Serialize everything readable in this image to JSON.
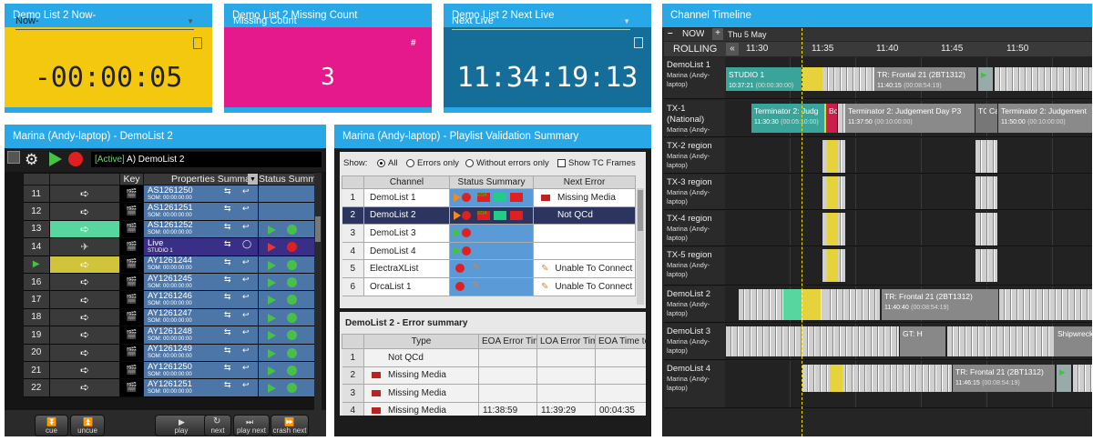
{
  "widgets": [
    {
      "title": "Demo List 2 Now-",
      "selector": "Now-",
      "value": "-00:00:05"
    },
    {
      "title": "Demo List 2 Missing Count",
      "selector": "Missing Count",
      "value": "3"
    },
    {
      "title": "Demo List 2 Next Live",
      "selector": "Next Live",
      "value": "11:34:19:13"
    }
  ],
  "playlist": {
    "title": "Marina (Andy-laptop) - DemoList 2",
    "status_prefix": "[Active]",
    "status_text": "A) DemoList 2",
    "headers": [
      "Key",
      "Properties Summary",
      "Status Summar"
    ],
    "rows": [
      {
        "num": "11",
        "name": "AS1261250",
        "som": "SOM: 00:00:00:00"
      },
      {
        "num": "12",
        "name": "AS1261251",
        "som": "SOM: 00:00:00:00"
      },
      {
        "num": "13",
        "name": "AS1261252",
        "som": "SOM: 00:00:00:00"
      },
      {
        "num": "14",
        "name": "Live",
        "som": "STUDIO 1"
      },
      {
        "num": "",
        "name": "AY1261244",
        "som": "SOM: 00:00:00:00"
      },
      {
        "num": "16",
        "name": "AY1261245",
        "som": "SOM: 00:00:00:00"
      },
      {
        "num": "17",
        "name": "AY1261246",
        "som": "SOM: 00:00:00:00"
      },
      {
        "num": "18",
        "name": "AY1261247",
        "som": "SOM: 00:00:00:00"
      },
      {
        "num": "19",
        "name": "AY1261248",
        "som": "SOM: 00:00:00:00"
      },
      {
        "num": "20",
        "name": "AY1261249",
        "som": "SOM: 00:00:00:00"
      },
      {
        "num": "21",
        "name": "AY1261250",
        "som": "SOM: 00:00:00:00"
      },
      {
        "num": "22",
        "name": "AY1261251",
        "som": "SOM: 00:00:00:00"
      }
    ],
    "controls": [
      "cue",
      "uncue",
      "play",
      "next",
      "play next",
      "crash next"
    ]
  },
  "validation": {
    "title": "Marina (Andy-laptop) - Playlist Validation Summary",
    "show_label": "Show:",
    "filters": [
      "All",
      "Errors only",
      "Without errors only"
    ],
    "show_tc": "Show TC Frames",
    "headers": [
      "Channel",
      "Status Summary",
      "Next Error"
    ],
    "rows": [
      {
        "num": "1",
        "channel": "DemoList 1",
        "next_error": "Missing Media"
      },
      {
        "num": "2",
        "channel": "DemoList 2",
        "next_error": "Not QCd"
      },
      {
        "num": "3",
        "channel": "DemoList 3",
        "next_error": ""
      },
      {
        "num": "4",
        "channel": "DemoList 4",
        "next_error": ""
      },
      {
        "num": "5",
        "channel": "ElectraXList",
        "next_error": "Unable To Connect"
      },
      {
        "num": "6",
        "channel": "OrcaList 1",
        "next_error": "Unable To Connect"
      }
    ],
    "error_title": "DemoList 2 - Error summary",
    "error_headers": [
      "Type",
      "EOA Error Time",
      "LOA Error Time",
      "EOA Time to"
    ],
    "error_rows": [
      {
        "num": "1",
        "type": "Not QCd",
        "eoa": "",
        "loa": "",
        "tto": ""
      },
      {
        "num": "2",
        "type": "Missing Media",
        "eoa": "",
        "loa": "",
        "tto": ""
      },
      {
        "num": "3",
        "type": "Missing Media",
        "eoa": "",
        "loa": "",
        "tto": ""
      },
      {
        "num": "4",
        "type": "Missing Media",
        "eoa": "11:38:59",
        "loa": "11:39:29",
        "tto": "00:04:35"
      }
    ]
  },
  "timeline": {
    "title": "Channel Timeline",
    "now_label": "NOW",
    "date": "Thu 5 May",
    "rolling": "ROLLING",
    "times": [
      "11:30",
      "11:35",
      "11:40",
      "11:45",
      "11:50"
    ],
    "channels": [
      {
        "name": "DemoList 1",
        "sub": "Marina (Andy-laptop)"
      },
      {
        "name": "TX-1 (National)",
        "sub": "Marina (Andy-laptop)"
      },
      {
        "name": "TX-2 region",
        "sub": "Marina (Andy-laptop)"
      },
      {
        "name": "TX-3 region",
        "sub": "Marina (Andy-laptop)"
      },
      {
        "name": "TX-4 region",
        "sub": "Marina (Andy-laptop)"
      },
      {
        "name": "TX-5 region",
        "sub": "Marina (Andy-laptop)"
      },
      {
        "name": "DemoList 2",
        "sub": "Marina (Andy-laptop)"
      },
      {
        "name": "DemoList 3",
        "sub": "Marina (Andy-laptop)"
      },
      {
        "name": "DemoList 4",
        "sub": "Marina (Andy-laptop)"
      }
    ],
    "events": {
      "studio1": {
        "name": "STUDIO 1",
        "time": "10:37:21",
        "dur": "(00:00:30:00)"
      },
      "tr1": {
        "name": "TR: Frontal 21",
        "id": "(2BT1312)",
        "time": "11:40:15",
        "dur": "(00:08:54:19)"
      },
      "term1": {
        "name": "Terminator 2: Judg",
        "time": "11:30:30",
        "dur": "(00:05:10:00)"
      },
      "bo": {
        "name": "Bo"
      },
      "term2": {
        "name": "Terminator 2: Judgement Day P3",
        "time": "11:37:50",
        "dur": "(00:10:00:00)"
      },
      "tc": {
        "name": "TC"
      },
      "ca": {
        "name": "Ca"
      },
      "term3": {
        "name": "Terminator 2: Judgement",
        "time": "11:50:00",
        "dur": "(00:10:00:00)"
      },
      "tr2": {
        "name": "TR: Frontal 21",
        "id": "(2BT1312)",
        "time": "11:40:40",
        "dur": "(00:08:54:19)"
      },
      "gt": {
        "name": "GT: H"
      },
      "ship": {
        "name": "Shipwreck"
      },
      "tr3": {
        "name": "TR: Frontal 21",
        "id": "(2BT1312)",
        "time": "11:46:15",
        "dur": "(00:08:54:19)"
      }
    }
  },
  "colors": {
    "accent": "#29a8e8",
    "now_yellow": "#f3c80f",
    "missing_magenta": "#e6198c",
    "next_live_blue": "#156d99"
  }
}
